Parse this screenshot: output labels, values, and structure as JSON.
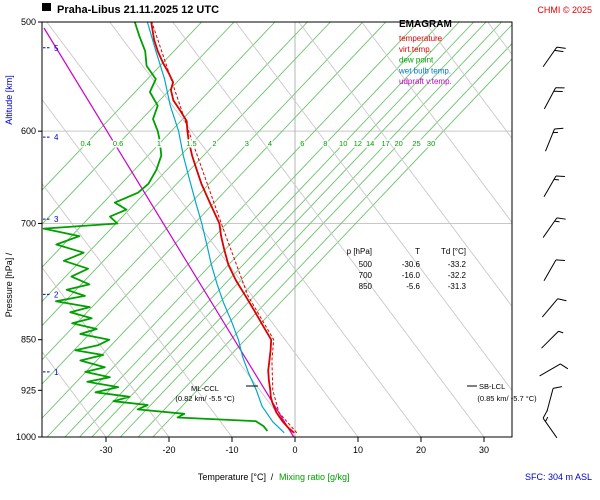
{
  "header": {
    "title": "Praha-Libus   21.11.2025 12 UTC",
    "copyright": "CHMI © 2025"
  },
  "legend": {
    "title": "EMAGRAM",
    "items": [
      {
        "label": "temperature",
        "color": "#dd0000"
      },
      {
        "label": "virt.temp.",
        "color": "#dd0000"
      },
      {
        "label": "dew point",
        "color": "#00a000"
      },
      {
        "label": "wet bulb temp.",
        "color": "#0077cc"
      },
      {
        "label": "udpraft v.temp.",
        "color": "#cc00cc"
      }
    ]
  },
  "axes": {
    "pressure_label": "Pressure [hPa] /",
    "altitude_label": "Altitude [km]",
    "temp_label": "Temperature [°C]",
    "axis_separator": "/",
    "mixr_label": "Mixing ratio [g/kg]",
    "pressure_ticks": [
      500,
      600,
      700,
      850,
      925,
      1000
    ],
    "altitude_ticks": [
      {
        "km": 1,
        "p": 897
      },
      {
        "km": 2,
        "p": 788
      },
      {
        "km": 3,
        "p": 695
      },
      {
        "km": 4,
        "p": 606
      },
      {
        "km": 5,
        "p": 522
      }
    ],
    "temp_ticks": [
      -30,
      -20,
      -10,
      0,
      10,
      20,
      30
    ]
  },
  "table": {
    "columns": [
      "p [hPa]",
      "T",
      "Td [°C]"
    ],
    "rows": [
      [
        "500",
        "-30.6",
        "-33.2"
      ],
      [
        "700",
        "-16.0",
        "-32.2"
      ],
      [
        "850",
        "-5.6",
        "-31.3"
      ]
    ]
  },
  "annotations": {
    "ml_ccl": {
      "name": "ML-CCL",
      "detail": "(0.82 km/ -5.5 °C)"
    },
    "sb_lcl": {
      "name": "SB-LCL",
      "detail": "(0.85 km/ -5.7 °C)"
    }
  },
  "footer": {
    "sfc": "SFC: 304 m ASL"
  },
  "chart_data": {
    "type": "line",
    "title": "Praha-Libus 21.11.2025 12 UTC emagram sounding",
    "x_axis": {
      "label": "Temperature [°C]",
      "ticks": [
        -30,
        -20,
        -10,
        0,
        10,
        20,
        30
      ],
      "range": [
        -40,
        34
      ]
    },
    "y_axis": {
      "label": "Pressure [hPa]",
      "scale": "log",
      "ticks": [
        500,
        600,
        700,
        850,
        925,
        1000
      ],
      "range": [
        500,
        1000
      ]
    },
    "mixing_ratio_lines": {
      "values": [
        0.4,
        0.6,
        1,
        1.5,
        2,
        3,
        4,
        6,
        8,
        10,
        12,
        14,
        17,
        20,
        25,
        30
      ],
      "color": "#6cc46c"
    },
    "dry_adiabats": {
      "theta_c_min": -30,
      "theta_c_max": 90,
      "step": 10,
      "color": "#c9c9c9"
    },
    "series": [
      {
        "name": "updraft_virt_temp",
        "color": "#cc00cc",
        "width": 1.2,
        "dash": "",
        "points": [
          [
            1000,
            -0.2
          ],
          [
            505,
            -47.5
          ]
        ]
      },
      {
        "name": "wet_bulb",
        "color": "#00a8c8",
        "width": 1.2,
        "dash": "",
        "points": [
          [
            993,
            -1.8
          ],
          [
            975,
            -3.8
          ],
          [
            950,
            -5.8
          ],
          [
            925,
            -7.0
          ],
          [
            900,
            -8.5
          ],
          [
            875,
            -9.8
          ],
          [
            850,
            -10.8
          ],
          [
            825,
            -12.2
          ],
          [
            800,
            -13.8
          ],
          [
            775,
            -15.2
          ],
          [
            750,
            -16.5
          ],
          [
            725,
            -17.6
          ],
          [
            700,
            -18.8
          ],
          [
            675,
            -20.2
          ],
          [
            650,
            -21.6
          ],
          [
            625,
            -23.0
          ],
          [
            600,
            -24.2
          ],
          [
            575,
            -26.0
          ],
          [
            550,
            -27.4
          ],
          [
            525,
            -29.3
          ],
          [
            500,
            -31.2
          ]
        ]
      },
      {
        "name": "dew_point",
        "color": "#00a000",
        "width": 1.8,
        "dash": "",
        "points": [
          [
            990,
            -4.5
          ],
          [
            982,
            -5.2
          ],
          [
            974,
            -6.5
          ],
          [
            968,
            -19.0
          ],
          [
            962,
            -18.0
          ],
          [
            955,
            -25.5
          ],
          [
            948,
            -24.0
          ],
          [
            942,
            -29.5
          ],
          [
            935,
            -27.0
          ],
          [
            928,
            -32.5
          ],
          [
            920,
            -29.0
          ],
          [
            912,
            -34.0
          ],
          [
            905,
            -30.5
          ],
          [
            897,
            -34.5
          ],
          [
            890,
            -31.5
          ],
          [
            880,
            -35.5
          ],
          [
            872,
            -32.0
          ],
          [
            865,
            -36.5
          ],
          [
            858,
            -33.0
          ],
          [
            850,
            -31.3
          ],
          [
            842,
            -36.0
          ],
          [
            835,
            -33.5
          ],
          [
            827,
            -37.5
          ],
          [
            820,
            -34.5
          ],
          [
            812,
            -38.0
          ],
          [
            805,
            -35.0
          ],
          [
            797,
            -40.5
          ],
          [
            790,
            -36.0
          ],
          [
            782,
            -39.0
          ],
          [
            775,
            -35.5
          ],
          [
            765,
            -38.5
          ],
          [
            755,
            -36.0
          ],
          [
            745,
            -40.0
          ],
          [
            735,
            -37.0
          ],
          [
            725,
            -41.5
          ],
          [
            715,
            -38.0
          ],
          [
            706,
            -43.8
          ],
          [
            700,
            -32.2
          ],
          [
            692,
            -33.5
          ],
          [
            684,
            -31.0
          ],
          [
            676,
            -33.0
          ],
          [
            665,
            -29.5
          ],
          [
            655,
            -28.0
          ],
          [
            640,
            -27.0
          ],
          [
            625,
            -26.5
          ],
          [
            610,
            -27.0
          ],
          [
            600,
            -27.5
          ],
          [
            588,
            -28.5
          ],
          [
            575,
            -28.0
          ],
          [
            562,
            -29.5
          ],
          [
            550,
            -28.8
          ],
          [
            538,
            -30.5
          ],
          [
            525,
            -31.0
          ],
          [
            512,
            -32.2
          ],
          [
            500,
            -33.2
          ]
        ]
      },
      {
        "name": "virt_temp",
        "color": "#dd0000",
        "width": 1.0,
        "dash": "3,2",
        "points": [
          [
            993,
            0.2
          ],
          [
            960,
            -3.0
          ],
          [
            925,
            -4.4
          ],
          [
            880,
            -5.1
          ],
          [
            850,
            -5.2
          ],
          [
            790,
            -10.1
          ],
          [
            700,
            -15.7
          ],
          [
            600,
            -22.6
          ],
          [
            500,
            -30.5
          ]
        ]
      },
      {
        "name": "temperature",
        "color": "#dd0000",
        "width": 1.8,
        "dash": "",
        "points": [
          [
            993,
            -0.2
          ],
          [
            985,
            -1.2
          ],
          [
            975,
            -2.2
          ],
          [
            960,
            -3.4
          ],
          [
            945,
            -4.2
          ],
          [
            935,
            -4.6
          ],
          [
            925,
            -4.8
          ],
          [
            910,
            -5.2
          ],
          [
            895,
            -5.5
          ],
          [
            880,
            -5.5
          ],
          [
            865,
            -5.5
          ],
          [
            850,
            -5.6
          ],
          [
            830,
            -7.2
          ],
          [
            810,
            -8.8
          ],
          [
            790,
            -10.5
          ],
          [
            770,
            -12.3
          ],
          [
            750,
            -13.8
          ],
          [
            730,
            -14.8
          ],
          [
            715,
            -15.5
          ],
          [
            700,
            -16.0
          ],
          [
            685,
            -17.2
          ],
          [
            670,
            -18.4
          ],
          [
            655,
            -19.6
          ],
          [
            640,
            -20.6
          ],
          [
            625,
            -21.6
          ],
          [
            610,
            -22.4
          ],
          [
            600,
            -22.8
          ],
          [
            590,
            -23.1
          ],
          [
            580,
            -24.3
          ],
          [
            570,
            -25.6
          ],
          [
            560,
            -26.2
          ],
          [
            553,
            -26.0
          ],
          [
            545,
            -26.8
          ],
          [
            535,
            -28.0
          ],
          [
            525,
            -29.0
          ],
          [
            515,
            -29.8
          ],
          [
            500,
            -30.6
          ]
        ]
      }
    ],
    "levels_table": [
      {
        "p": 500,
        "T": -30.6,
        "Td": -33.2
      },
      {
        "p": 700,
        "T": -16.0,
        "Td": -32.2
      },
      {
        "p": 850,
        "T": -5.6,
        "Td": -31.3
      }
    ],
    "wind_barbs": [
      {
        "p": 530,
        "speed_kt": 20,
        "angle_deg": 35
      },
      {
        "p": 568,
        "speed_kt": 20,
        "angle_deg": 28
      },
      {
        "p": 609,
        "speed_kt": 15,
        "angle_deg": 22
      },
      {
        "p": 658,
        "speed_kt": 15,
        "angle_deg": 30
      },
      {
        "p": 705,
        "speed_kt": 15,
        "angle_deg": 35
      },
      {
        "p": 757,
        "speed_kt": 10,
        "angle_deg": 30
      },
      {
        "p": 806,
        "speed_kt": 10,
        "angle_deg": 40
      },
      {
        "p": 850,
        "speed_kt": 5,
        "angle_deg": 45
      },
      {
        "p": 894,
        "speed_kt": 10,
        "angle_deg": 60
      },
      {
        "p": 940,
        "speed_kt": 10,
        "angle_deg": 15
      },
      {
        "p": 985,
        "speed_kt": 15,
        "angle_deg": -35
      }
    ],
    "surface_elevation": "SFC: 304 m ASL"
  }
}
